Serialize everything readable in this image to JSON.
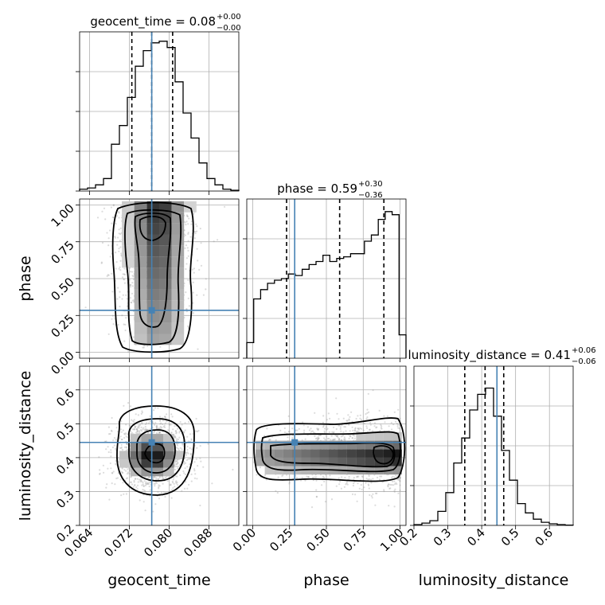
{
  "chart_data": {
    "type": "corner",
    "parameters": [
      "geocent_time",
      "phase",
      "luminosity_distance"
    ],
    "truth_color": "#4682b4",
    "panels": {
      "geocent_time": {
        "title": "geocent_time = 0.08",
        "title_sup": "+0.00",
        "title_sub": "−0.00",
        "range": [
          0.062,
          0.094
        ],
        "ticks": [
          0.064,
          0.072,
          0.08,
          0.088
        ],
        "tick_labels": [
          "0.064",
          "0.072",
          "0.080",
          "0.088"
        ],
        "truth": 0.0765,
        "quantiles": [
          0.0725,
          0.0765,
          0.0807
        ],
        "hist_x": [
          0.062,
          0.0636,
          0.0652,
          0.0668,
          0.0684,
          0.07,
          0.0716,
          0.0732,
          0.0748,
          0.0764,
          0.078,
          0.0796,
          0.0812,
          0.0828,
          0.0844,
          0.086,
          0.0876,
          0.0892,
          0.0908,
          0.0924,
          0.094
        ],
        "hist_counts": [
          0.012,
          0.02,
          0.04,
          0.08,
          0.3,
          0.42,
          0.6,
          0.8,
          0.9,
          0.95,
          0.96,
          0.92,
          0.7,
          0.5,
          0.34,
          0.18,
          0.08,
          0.04,
          0.012,
          0.005
        ]
      },
      "phase": {
        "title": "phase = 0.59",
        "title_sup": "+0.30",
        "title_sub": "−0.36",
        "range": [
          -0.04,
          1.04
        ],
        "ticks": [
          0.0,
          0.25,
          0.5,
          0.75,
          1.0
        ],
        "tick_labels": [
          "0.00",
          "0.25",
          "0.50",
          "0.75",
          "1.00"
        ],
        "truth": 0.285,
        "quantiles": [
          0.23,
          0.59,
          0.89
        ],
        "hist_counts": [
          0.1,
          0.38,
          0.44,
          0.48,
          0.5,
          0.51,
          0.54,
          0.53,
          0.57,
          0.6,
          0.62,
          0.66,
          0.62,
          0.64,
          0.65,
          0.67,
          0.67,
          0.75,
          0.79,
          0.89,
          0.94,
          0.92,
          0.15
        ]
      },
      "luminosity_distance": {
        "title": "luminosity_distance = 0.41",
        "title_sup": "+0.06",
        "title_sub": "−0.06",
        "range": [
          0.2,
          0.67
        ],
        "ticks": [
          0.2,
          0.3,
          0.4,
          0.5,
          0.6
        ],
        "tick_labels": [
          "0.2",
          "0.3",
          "0.4",
          "0.5",
          "0.6"
        ],
        "truth": 0.445,
        "quantiles": [
          0.35,
          0.41,
          0.465
        ],
        "hist_counts": [
          0.005,
          0.015,
          0.03,
          0.09,
          0.21,
          0.4,
          0.56,
          0.74,
          0.84,
          0.88,
          0.7,
          0.48,
          0.29,
          0.14,
          0.08,
          0.04,
          0.02,
          0.01,
          0.005,
          0.002
        ]
      }
    },
    "grid": true
  }
}
